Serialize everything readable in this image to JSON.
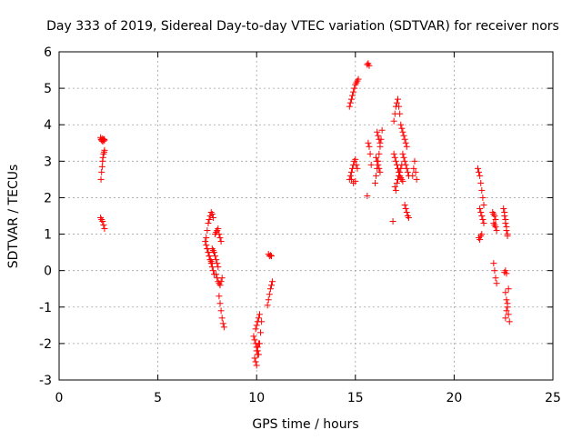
{
  "chart_data": {
    "type": "scatter",
    "title": "Day 333 of 2019, Sidereal Day-to-day VTEC variation (SDTVAR) for receiver nors",
    "xlabel": "GPS time / hours",
    "ylabel": "SDTVAR / TECUs",
    "xlim": [
      0,
      25
    ],
    "ylim": [
      -3,
      6
    ],
    "xticks": [
      0,
      5,
      10,
      15,
      20,
      25
    ],
    "yticks": [
      -3,
      -2,
      -1,
      0,
      1,
      2,
      3,
      4,
      5,
      6
    ],
    "xtick_labels": [
      "0",
      "5",
      "10",
      "15",
      "20",
      "25"
    ],
    "ytick_labels": [
      "-3",
      "-2",
      "-1",
      "0",
      "1",
      "2",
      "3",
      "4",
      "5",
      "6"
    ],
    "grid": true,
    "marker": "plus",
    "color": "#ff0000",
    "series": [
      {
        "name": "SDTVAR",
        "x": [
          2.1,
          2.12,
          2.15,
          2.18,
          2.2,
          2.22,
          2.25,
          2.28,
          2.3,
          2.12,
          2.15,
          2.18,
          2.2,
          2.22,
          2.25,
          2.28,
          2.3,
          2.1,
          2.15,
          2.2,
          2.25,
          2.3,
          7.45,
          7.5,
          7.55,
          7.6,
          7.65,
          7.7,
          7.75,
          7.8,
          7.4,
          7.45,
          7.5,
          7.55,
          7.6,
          7.65,
          7.7,
          7.75,
          7.5,
          7.55,
          7.6,
          7.65,
          7.7,
          7.75,
          7.8,
          7.85,
          7.75,
          7.8,
          7.85,
          7.9,
          7.95,
          8.0,
          8.05,
          7.9,
          7.95,
          8.0,
          8.05,
          8.1,
          8.15,
          8.2,
          7.95,
          8.0,
          8.05,
          8.1,
          8.15,
          8.2,
          8.25,
          8.1,
          8.15,
          8.2,
          8.25,
          8.3,
          8.35,
          9.85,
          9.9,
          9.95,
          10.0,
          10.05,
          10.1,
          10.15,
          10.2,
          10.25,
          9.9,
          9.95,
          10.0,
          10.05,
          10.1,
          9.95,
          10.0,
          10.05,
          10.1,
          10.15,
          10.0,
          10.05,
          10.55,
          10.6,
          10.65,
          10.7,
          10.75,
          10.8,
          10.6,
          10.65,
          10.7,
          10.75,
          14.7,
          14.75,
          14.8,
          14.85,
          14.9,
          14.95,
          15.0,
          15.05,
          15.1,
          15.15,
          14.7,
          14.75,
          14.8,
          14.85,
          14.9,
          14.95,
          15.0,
          15.05,
          15.1,
          14.8,
          14.9,
          15.0,
          15.6,
          15.65,
          15.7,
          15.65,
          15.7,
          15.75,
          15.8,
          15.6,
          16.0,
          16.05,
          16.1,
          16.15,
          16.2,
          16.25,
          16.3,
          16.35,
          16.05,
          16.1,
          16.15,
          16.2,
          16.25,
          16.1,
          16.15,
          16.2,
          16.25,
          16.95,
          17.0,
          17.05,
          17.1,
          17.15,
          17.2,
          17.25,
          16.95,
          17.0,
          17.05,
          17.1,
          17.15,
          17.2,
          17.25,
          17.3,
          17.35,
          17.4,
          17.0,
          17.05,
          17.1,
          17.15,
          17.2,
          17.25,
          17.3,
          17.35,
          17.3,
          17.35,
          17.4,
          17.45,
          17.5,
          17.55,
          17.6,
          17.4,
          17.45,
          17.5,
          17.55,
          17.6,
          17.65,
          17.7,
          17.5,
          17.55,
          17.6,
          17.65,
          17.7,
          17.9,
          17.95,
          18.0,
          18.05,
          18.1,
          16.9,
          21.2,
          21.25,
          21.3,
          21.35,
          21.4,
          21.45,
          21.5,
          21.3,
          21.35,
          21.4,
          21.45,
          21.5,
          21.25,
          21.3,
          21.35,
          21.4,
          21.95,
          22.0,
          22.05,
          22.1,
          22.0,
          22.05,
          22.1,
          22.15,
          22.0,
          22.05,
          22.1,
          22.15,
          22.5,
          22.55,
          22.6,
          22.65,
          22.7,
          22.55,
          22.6,
          22.65,
          22.7,
          22.6,
          22.65,
          22.7,
          22.75,
          22.8,
          22.6,
          22.65,
          22.7,
          22.75,
          22.55,
          22.6,
          22.65
        ],
        "y": [
          3.65,
          3.6,
          3.58,
          3.55,
          3.62,
          3.6,
          3.55,
          3.6,
          3.58,
          2.5,
          2.7,
          2.85,
          3.0,
          3.1,
          3.2,
          3.25,
          3.3,
          1.45,
          1.4,
          1.35,
          1.25,
          1.15,
          0.9,
          1.1,
          1.3,
          1.4,
          1.5,
          1.6,
          1.55,
          1.45,
          0.8,
          0.7,
          0.6,
          0.5,
          0.4,
          0.3,
          0.25,
          0.2,
          0.6,
          0.5,
          0.4,
          0.3,
          0.2,
          0.1,
          0.0,
          -0.1,
          0.6,
          0.55,
          0.5,
          0.4,
          0.3,
          0.2,
          0.1,
          1.0,
          1.05,
          1.1,
          1.15,
          1.0,
          0.9,
          0.8,
          -0.1,
          -0.2,
          -0.3,
          -0.35,
          -0.4,
          -0.3,
          -0.2,
          -0.7,
          -0.9,
          -1.1,
          -1.3,
          -1.45,
          -1.55,
          -1.8,
          -1.9,
          -2.0,
          -2.1,
          -2.2,
          -2.3,
          -2.0,
          -1.7,
          -1.4,
          -2.4,
          -2.5,
          -2.6,
          -2.3,
          -2.0,
          -1.6,
          -1.5,
          -1.4,
          -1.3,
          -1.2,
          -2.2,
          -2.1,
          -0.95,
          -0.8,
          -0.65,
          -0.5,
          -0.4,
          -0.3,
          0.45,
          0.4,
          0.42,
          0.4,
          4.5,
          4.6,
          4.7,
          4.8,
          4.9,
          5.0,
          5.1,
          5.15,
          5.2,
          5.25,
          2.5,
          2.6,
          2.7,
          2.8,
          2.9,
          3.0,
          3.05,
          2.9,
          2.8,
          2.5,
          2.4,
          2.45,
          5.65,
          5.68,
          5.62,
          3.5,
          3.4,
          3.2,
          2.9,
          2.05,
          2.4,
          2.6,
          2.8,
          3.0,
          3.2,
          3.4,
          3.6,
          3.85,
          3.1,
          3.0,
          2.9,
          2.8,
          2.7,
          3.8,
          3.7,
          3.6,
          3.5,
          4.1,
          4.3,
          4.5,
          4.6,
          4.7,
          4.5,
          4.3,
          3.2,
          3.1,
          3.0,
          2.9,
          2.8,
          2.7,
          2.6,
          2.55,
          2.5,
          2.45,
          2.3,
          2.2,
          2.4,
          2.5,
          2.6,
          2.7,
          2.8,
          2.9,
          4.0,
          3.9,
          3.8,
          3.7,
          3.6,
          3.5,
          3.4,
          3.2,
          3.1,
          3.0,
          2.9,
          2.8,
          2.7,
          2.6,
          1.8,
          1.7,
          1.6,
          1.5,
          1.45,
          2.6,
          2.8,
          3.0,
          2.7,
          2.5,
          1.35,
          2.8,
          2.7,
          2.6,
          2.4,
          2.2,
          2.0,
          1.8,
          1.7,
          1.6,
          1.5,
          1.4,
          1.3,
          0.9,
          0.85,
          0.95,
          1.0,
          1.6,
          1.55,
          1.5,
          1.4,
          1.3,
          1.25,
          1.2,
          1.1,
          0.2,
          0.0,
          -0.2,
          -0.35,
          1.7,
          1.5,
          1.3,
          1.1,
          0.95,
          1.6,
          1.4,
          1.2,
          1.0,
          -0.6,
          -0.8,
          -1.0,
          -1.2,
          -1.4,
          -1.3,
          -1.1,
          -0.9,
          -0.5,
          -0.05,
          0.0,
          -0.08
        ]
      }
    ]
  }
}
